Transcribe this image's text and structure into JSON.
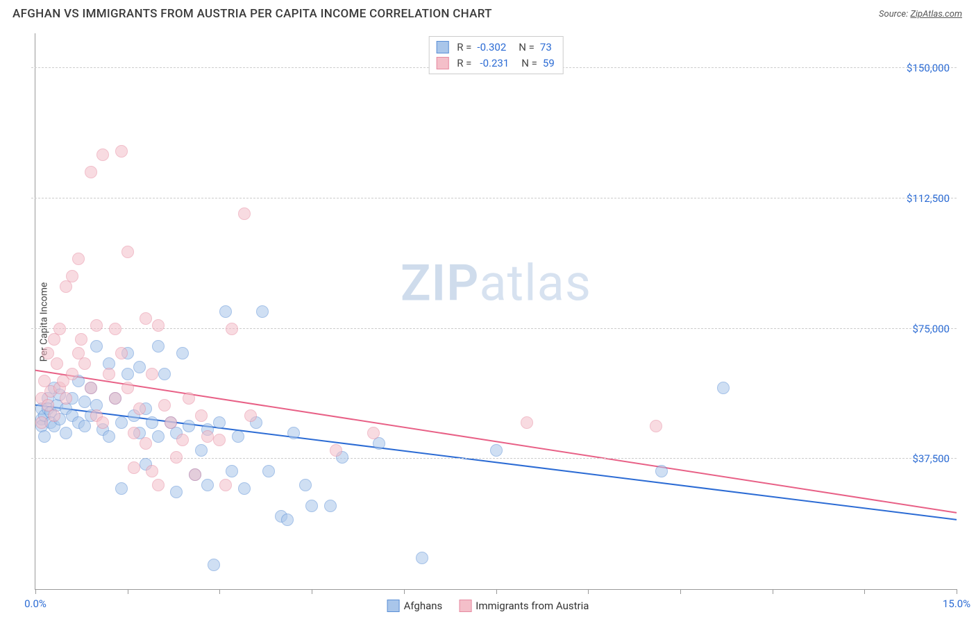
{
  "header": {
    "title": "AFGHAN VS IMMIGRANTS FROM AUSTRIA PER CAPITA INCOME CORRELATION CHART",
    "source_label": "Source: ",
    "source_link": "ZipAtlas.com"
  },
  "watermark": {
    "zip": "ZIP",
    "atlas": "atlas"
  },
  "y_axis": {
    "label": "Per Capita Income"
  },
  "chart": {
    "type": "scatter",
    "background_color": "#ffffff",
    "grid_color": "#cccccc",
    "axis_color": "#999999",
    "xlim": [
      0,
      15
    ],
    "ylim": [
      0,
      160000
    ],
    "y_ticks": [
      {
        "v": 37500,
        "label": "$37,500"
      },
      {
        "v": 75000,
        "label": "$75,000"
      },
      {
        "v": 112500,
        "label": "$112,500"
      },
      {
        "v": 150000,
        "label": "$150,000"
      }
    ],
    "x_ticks": [
      0,
      1.5,
      3,
      4.5,
      6,
      7.5,
      9,
      10.5,
      12,
      13.5,
      15
    ],
    "x_tick_labels": {
      "first": "0.0%",
      "last": "15.0%"
    },
    "marker_radius": 9,
    "marker_opacity": 0.55,
    "series": [
      {
        "key": "afghans",
        "name": "Afghans",
        "color_fill": "#a9c6ea",
        "color_stroke": "#5a8fd6",
        "line_color": "#2b6bd4",
        "line_width": 2,
        "r_label": "R =",
        "r_value": "-0.302",
        "n_label": "N =",
        "n_value": "73",
        "trend": {
          "x1": 0,
          "y1": 53000,
          "x2": 15,
          "y2": 20000
        },
        "points": [
          [
            0.1,
            49000
          ],
          [
            0.1,
            52000
          ],
          [
            0.1,
            47000
          ],
          [
            0.15,
            50000
          ],
          [
            0.15,
            44000
          ],
          [
            0.2,
            55000
          ],
          [
            0.2,
            52000
          ],
          [
            0.25,
            51000
          ],
          [
            0.25,
            48000
          ],
          [
            0.3,
            58000
          ],
          [
            0.3,
            47000
          ],
          [
            0.35,
            53000
          ],
          [
            0.4,
            49000
          ],
          [
            0.4,
            56000
          ],
          [
            0.5,
            52000
          ],
          [
            0.5,
            45000
          ],
          [
            0.6,
            55000
          ],
          [
            0.6,
            50000
          ],
          [
            0.7,
            48000
          ],
          [
            0.7,
            60000
          ],
          [
            0.8,
            54000
          ],
          [
            0.8,
            47000
          ],
          [
            0.9,
            58000
          ],
          [
            0.9,
            50000
          ],
          [
            1.0,
            53000
          ],
          [
            1.0,
            70000
          ],
          [
            1.1,
            46000
          ],
          [
            1.2,
            65000
          ],
          [
            1.2,
            44000
          ],
          [
            1.3,
            55000
          ],
          [
            1.4,
            29000
          ],
          [
            1.4,
            48000
          ],
          [
            1.5,
            62000
          ],
          [
            1.5,
            68000
          ],
          [
            1.6,
            50000
          ],
          [
            1.7,
            64000
          ],
          [
            1.7,
            45000
          ],
          [
            1.8,
            52000
          ],
          [
            1.8,
            36000
          ],
          [
            1.9,
            48000
          ],
          [
            2.0,
            70000
          ],
          [
            2.0,
            44000
          ],
          [
            2.1,
            62000
          ],
          [
            2.2,
            48000
          ],
          [
            2.3,
            28000
          ],
          [
            2.3,
            45000
          ],
          [
            2.4,
            68000
          ],
          [
            2.5,
            47000
          ],
          [
            2.6,
            33000
          ],
          [
            2.7,
            40000
          ],
          [
            2.8,
            46000
          ],
          [
            2.8,
            30000
          ],
          [
            2.9,
            7000
          ],
          [
            3.0,
            48000
          ],
          [
            3.1,
            80000
          ],
          [
            3.2,
            34000
          ],
          [
            3.3,
            44000
          ],
          [
            3.4,
            29000
          ],
          [
            3.6,
            48000
          ],
          [
            3.7,
            80000
          ],
          [
            3.8,
            34000
          ],
          [
            4.0,
            21000
          ],
          [
            4.1,
            20000
          ],
          [
            4.2,
            45000
          ],
          [
            4.4,
            30000
          ],
          [
            4.5,
            24000
          ],
          [
            4.8,
            24000
          ],
          [
            5.0,
            38000
          ],
          [
            5.6,
            42000
          ],
          [
            6.3,
            9000
          ],
          [
            7.5,
            40000
          ],
          [
            10.2,
            34000
          ],
          [
            11.2,
            58000
          ]
        ]
      },
      {
        "key": "austria",
        "name": "Immigrants from Austria",
        "color_fill": "#f4bfc9",
        "color_stroke": "#e68aa0",
        "line_color": "#e86086",
        "line_width": 2,
        "r_label": "R =",
        "r_value": "-0.231",
        "n_label": "N =",
        "n_value": "59",
        "trend": {
          "x1": 0,
          "y1": 63000,
          "x2": 15,
          "y2": 22000
        },
        "points": [
          [
            0.1,
            48000
          ],
          [
            0.1,
            55000
          ],
          [
            0.15,
            60000
          ],
          [
            0.2,
            53000
          ],
          [
            0.2,
            68000
          ],
          [
            0.25,
            57000
          ],
          [
            0.3,
            72000
          ],
          [
            0.3,
            50000
          ],
          [
            0.35,
            65000
          ],
          [
            0.4,
            58000
          ],
          [
            0.4,
            75000
          ],
          [
            0.45,
            60000
          ],
          [
            0.5,
            87000
          ],
          [
            0.5,
            55000
          ],
          [
            0.6,
            90000
          ],
          [
            0.6,
            62000
          ],
          [
            0.7,
            95000
          ],
          [
            0.7,
            68000
          ],
          [
            0.75,
            72000
          ],
          [
            0.8,
            65000
          ],
          [
            0.9,
            120000
          ],
          [
            0.9,
            58000
          ],
          [
            1.0,
            76000
          ],
          [
            1.0,
            50000
          ],
          [
            1.1,
            125000
          ],
          [
            1.1,
            48000
          ],
          [
            1.2,
            62000
          ],
          [
            1.3,
            55000
          ],
          [
            1.3,
            75000
          ],
          [
            1.4,
            126000
          ],
          [
            1.4,
            68000
          ],
          [
            1.5,
            58000
          ],
          [
            1.5,
            97000
          ],
          [
            1.6,
            45000
          ],
          [
            1.6,
            35000
          ],
          [
            1.7,
            52000
          ],
          [
            1.8,
            78000
          ],
          [
            1.8,
            42000
          ],
          [
            1.9,
            34000
          ],
          [
            1.9,
            62000
          ],
          [
            2.0,
            76000
          ],
          [
            2.0,
            30000
          ],
          [
            2.1,
            53000
          ],
          [
            2.2,
            48000
          ],
          [
            2.3,
            38000
          ],
          [
            2.4,
            43000
          ],
          [
            2.5,
            55000
          ],
          [
            2.6,
            33000
          ],
          [
            2.7,
            50000
          ],
          [
            2.8,
            44000
          ],
          [
            3.0,
            43000
          ],
          [
            3.1,
            30000
          ],
          [
            3.2,
            75000
          ],
          [
            3.4,
            108000
          ],
          [
            3.5,
            50000
          ],
          [
            4.9,
            40000
          ],
          [
            5.5,
            45000
          ],
          [
            8.0,
            48000
          ],
          [
            10.1,
            47000
          ]
        ]
      }
    ]
  }
}
